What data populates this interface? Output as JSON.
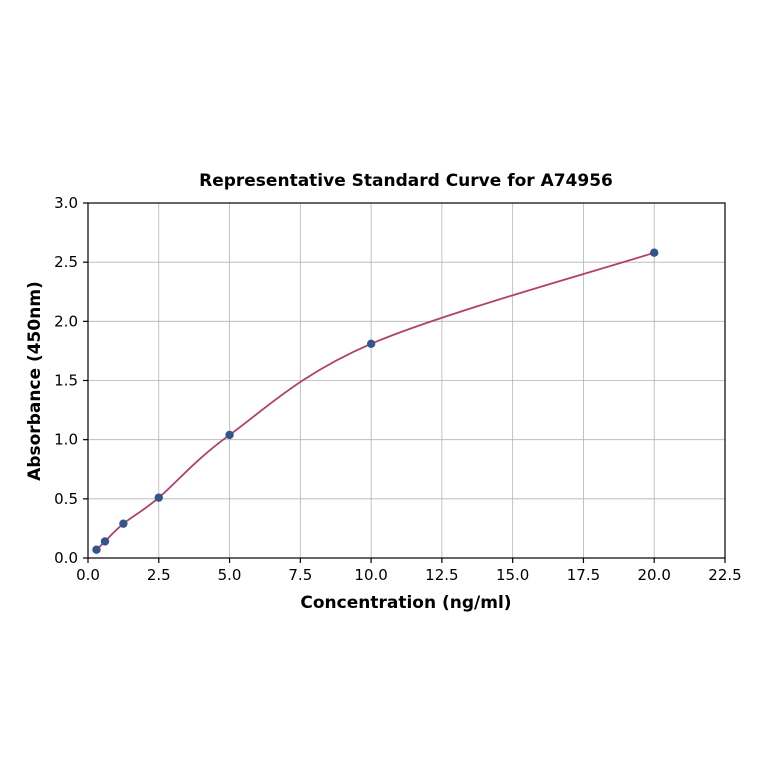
{
  "chart_data": {
    "type": "scatter",
    "title": "Representative Standard Curve for A74956",
    "xlabel": "Concentration (ng/ml)",
    "ylabel": "Absorbance (450nm)",
    "xlim": [
      0,
      22.5
    ],
    "ylim": [
      0,
      3.0
    ],
    "x_ticks": [
      0.0,
      2.5,
      5.0,
      7.5,
      10.0,
      12.5,
      15.0,
      17.5,
      20.0,
      22.5
    ],
    "y_ticks": [
      0.0,
      0.5,
      1.0,
      1.5,
      2.0,
      2.5,
      3.0
    ],
    "grid": true,
    "legend_position": "none",
    "series": [
      {
        "name": "standard-curve",
        "x": [
          0.3,
          0.6,
          1.25,
          2.5,
          5.0,
          10.0,
          20.0
        ],
        "y": [
          0.07,
          0.14,
          0.29,
          0.51,
          1.04,
          1.81,
          2.58
        ]
      }
    ],
    "colors": {
      "curve": "#b0426a",
      "point": "#34558b",
      "grid": "#b3b3b3",
      "axis": "#000000"
    }
  }
}
